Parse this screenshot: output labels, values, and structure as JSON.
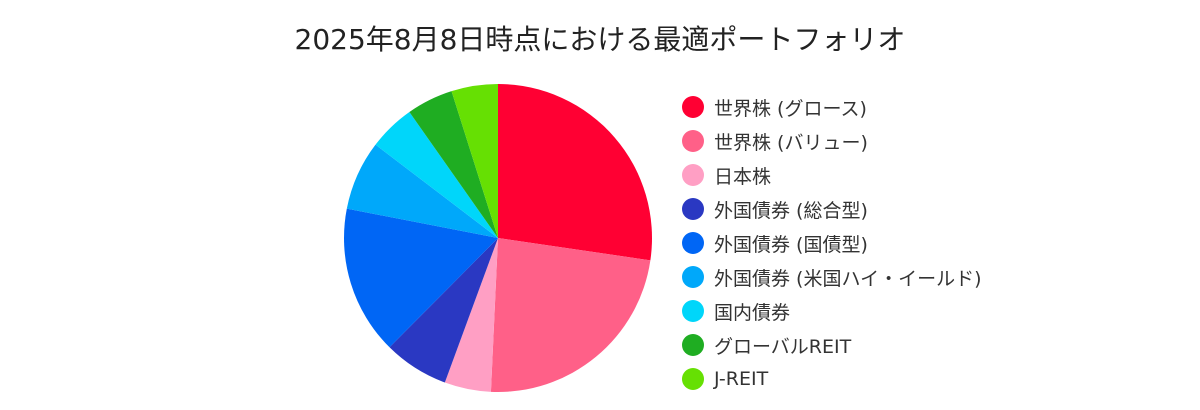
{
  "chart_data": {
    "type": "pie",
    "title": "2025年8月8日時点における最適ポートフォリオ",
    "legend_position": "right",
    "start_angle_deg": 90,
    "direction": "clockwise",
    "slices": [
      {
        "label": "世界株 (グロース)",
        "value": 28,
        "color": "#ff0033"
      },
      {
        "label": "世界株 (バリュー)",
        "value": 24,
        "color": "#ff6088"
      },
      {
        "label": "日本株",
        "value": 5,
        "color": "#ff9fc4"
      },
      {
        "label": "外国債券 (総合型)",
        "value": 7,
        "color": "#2a38c2"
      },
      {
        "label": "外国債券 (国債型)",
        "value": 16,
        "color": "#0066f5"
      },
      {
        "label": "外国債券 (米国ハイ・イールド)",
        "value": 7.5,
        "color": "#00a8fa"
      },
      {
        "label": "国内債券",
        "value": 5,
        "color": "#00d6fa"
      },
      {
        "label": "グローバルREIT",
        "value": 5,
        "color": "#1fad22"
      },
      {
        "label": "J-REIT",
        "value": 5,
        "color": "#66e003"
      }
    ]
  }
}
